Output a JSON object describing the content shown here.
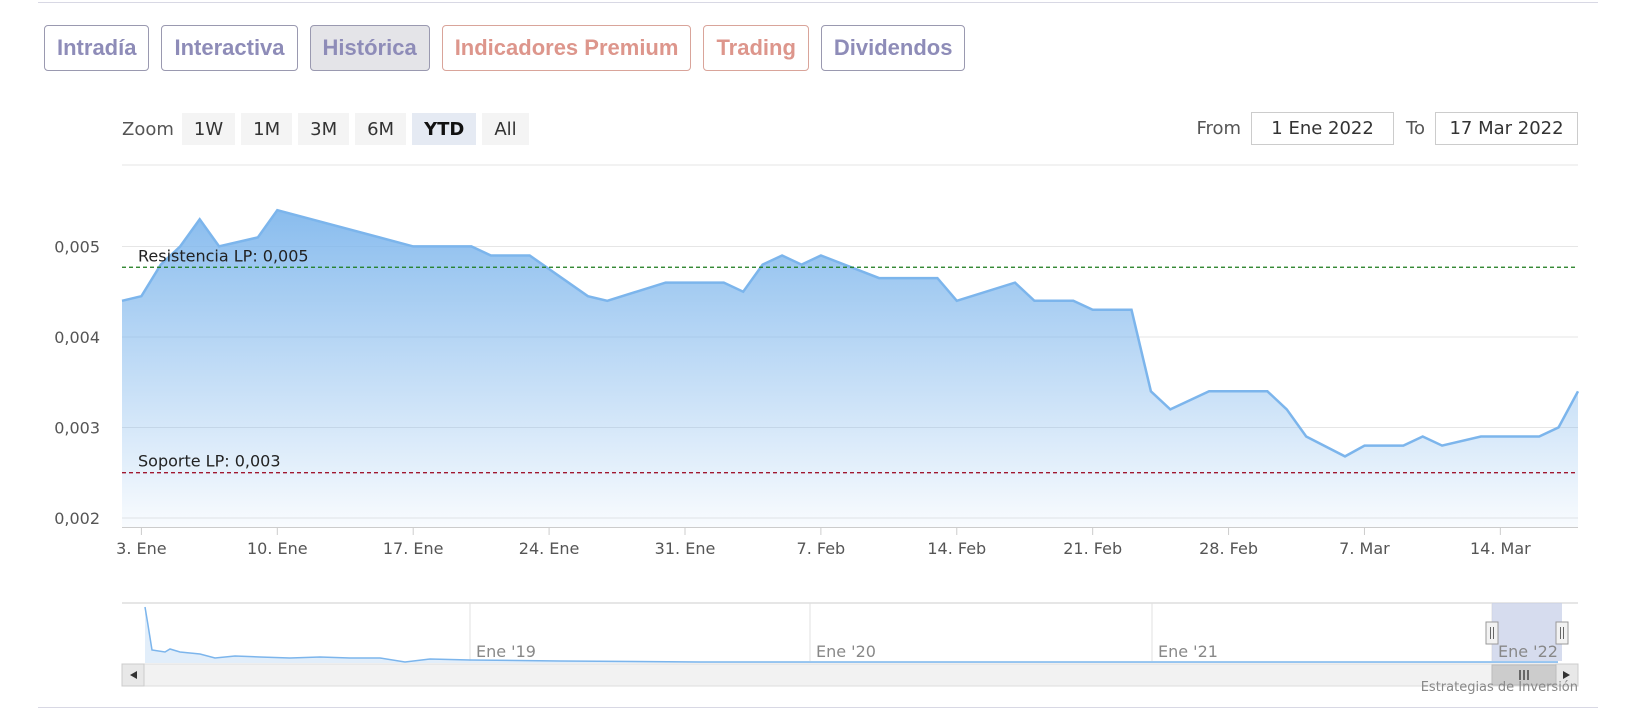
{
  "tabs": [
    {
      "label": "Intradía",
      "color": "violet",
      "active": false
    },
    {
      "label": "Interactiva",
      "color": "violet",
      "active": false
    },
    {
      "label": "Histórica",
      "color": "violet",
      "active": true
    },
    {
      "label": "Indicadores Premium",
      "color": "salmon",
      "active": false
    },
    {
      "label": "Trading",
      "color": "salmon",
      "active": false
    },
    {
      "label": "Dividendos",
      "color": "violet",
      "active": false
    }
  ],
  "zoom": {
    "label": "Zoom",
    "buttons": [
      "1W",
      "1M",
      "3M",
      "6M",
      "YTD",
      "All"
    ],
    "active": "YTD"
  },
  "range": {
    "from_label": "From",
    "from_value": "1 Ene 2022",
    "to_label": "To",
    "to_value": "17 Mar 2022"
  },
  "credit": "Estrategias de Inversión",
  "colors": {
    "area_line": "#7cb5ec",
    "resistance": "#1a7a1a",
    "support": "#a01830",
    "navigator_mask": "#c8d0e8"
  },
  "chart_data": {
    "type": "area",
    "xlabel": "",
    "ylabel": "",
    "x_range": [
      "2022-01-02",
      "2022-03-18"
    ],
    "ylim": [
      0.0019,
      0.0059
    ],
    "yticks": [
      {
        "value": 0.002,
        "label": "0,002"
      },
      {
        "value": 0.003,
        "label": "0,003"
      },
      {
        "value": 0.004,
        "label": "0,004"
      },
      {
        "value": 0.005,
        "label": "0,005"
      }
    ],
    "xticks": [
      {
        "date": "2022-01-03",
        "label": "3. Ene"
      },
      {
        "date": "2022-01-10",
        "label": "10. Ene"
      },
      {
        "date": "2022-01-17",
        "label": "17. Ene"
      },
      {
        "date": "2022-01-24",
        "label": "24. Ene"
      },
      {
        "date": "2022-01-31",
        "label": "31. Ene"
      },
      {
        "date": "2022-02-07",
        "label": "7. Feb"
      },
      {
        "date": "2022-02-14",
        "label": "14. Feb"
      },
      {
        "date": "2022-02-21",
        "label": "21. Feb"
      },
      {
        "date": "2022-02-28",
        "label": "28. Feb"
      },
      {
        "date": "2022-03-07",
        "label": "7. Mar"
      },
      {
        "date": "2022-03-14",
        "label": "14. Mar"
      }
    ],
    "grid": true,
    "series": [
      {
        "name": "",
        "points": [
          [
            "2022-01-02",
            0.0044
          ],
          [
            "2022-01-03",
            0.00445
          ],
          [
            "2022-01-04",
            0.0048
          ],
          [
            "2022-01-05",
            0.005
          ],
          [
            "2022-01-06",
            0.0053
          ],
          [
            "2022-01-07",
            0.005
          ],
          [
            "2022-01-09",
            0.0051
          ],
          [
            "2022-01-10",
            0.0054
          ],
          [
            "2022-01-17",
            0.005
          ],
          [
            "2022-01-20",
            0.005
          ],
          [
            "2022-01-21",
            0.0049
          ],
          [
            "2022-01-23",
            0.0049
          ],
          [
            "2022-01-26",
            0.00445
          ],
          [
            "2022-01-27",
            0.0044
          ],
          [
            "2022-01-30",
            0.0046
          ],
          [
            "2022-02-02",
            0.0046
          ],
          [
            "2022-02-03",
            0.0045
          ],
          [
            "2022-02-04",
            0.0048
          ],
          [
            "2022-02-05",
            0.0049
          ],
          [
            "2022-02-06",
            0.0048
          ],
          [
            "2022-02-07",
            0.0049
          ],
          [
            "2022-02-10",
            0.00465
          ],
          [
            "2022-02-13",
            0.00465
          ],
          [
            "2022-02-14",
            0.0044
          ],
          [
            "2022-02-17",
            0.0046
          ],
          [
            "2022-02-18",
            0.0044
          ],
          [
            "2022-02-20",
            0.0044
          ],
          [
            "2022-02-21",
            0.0043
          ],
          [
            "2022-02-23",
            0.0043
          ],
          [
            "2022-02-24",
            0.0034
          ],
          [
            "2022-02-25",
            0.0032
          ],
          [
            "2022-02-27",
            0.0034
          ],
          [
            "2022-03-02",
            0.0034
          ],
          [
            "2022-03-03",
            0.0032
          ],
          [
            "2022-03-04",
            0.0029
          ],
          [
            "2022-03-06",
            0.00268
          ],
          [
            "2022-03-07",
            0.0028
          ],
          [
            "2022-03-09",
            0.0028
          ],
          [
            "2022-03-10",
            0.0029
          ],
          [
            "2022-03-11",
            0.0028
          ],
          [
            "2022-03-13",
            0.0029
          ],
          [
            "2022-03-16",
            0.0029
          ],
          [
            "2022-03-17",
            0.003
          ],
          [
            "2022-03-18",
            0.0034
          ]
        ]
      }
    ],
    "annotations": [
      {
        "type": "resistance",
        "label": "Resistencia LP: 0,005",
        "value": 0.00477
      },
      {
        "type": "support",
        "label": "Soporte LP: 0,003",
        "value": 0.0025
      }
    ],
    "navigator": {
      "labels": [
        "Ene '19",
        "Ene '20",
        "Ene '21",
        "Ene '22"
      ]
    }
  }
}
